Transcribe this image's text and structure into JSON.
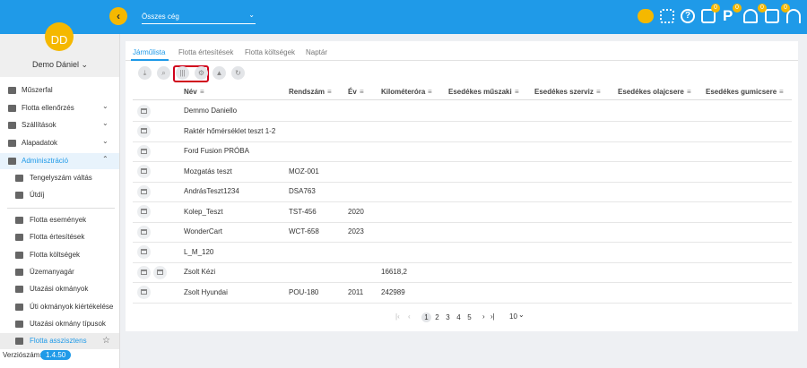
{
  "header": {
    "company_select": "Összes cég",
    "badges": [
      "0",
      "0",
      "0",
      "0"
    ]
  },
  "sidebar": {
    "avatar_initials": "DD",
    "user_name": "Demo Dániel",
    "menu": [
      "Műszerfal",
      "Flotta ellenőrzés",
      "Szállítások",
      "Alapadatok"
    ],
    "active_section": "Adminisztráció",
    "sub_items": [
      "Tengelyszám váltás",
      "Útdíj"
    ],
    "admin_items": [
      "Flotta események",
      "Flotta értesítések",
      "Flotta költségek",
      "Üzemanyagár",
      "Utazási okmányok",
      "Úti okmányok kiértékelése",
      "Utazási okmány típusok"
    ],
    "current": "Flotta asszisztens",
    "version_label": "Verziószám:",
    "version": "1.4.50"
  },
  "tabs": [
    "Járműlista",
    "Flotta értesítések",
    "Flotta költségek",
    "Naptár"
  ],
  "table": {
    "columns": [
      "Név",
      "Rendszám",
      "Év",
      "Kilométeróra",
      "Esedékes műszaki",
      "Esedékes szerviz",
      "Esedékes olajcsere",
      "Esedékes gumicsere"
    ],
    "rows": [
      {
        "name": "Demmo Daniello"
      },
      {
        "name": "Raktér hőmérséklet teszt 1-2"
      },
      {
        "name": "Ford Fusion PRÓBA"
      },
      {
        "name": "Mozgatás teszt",
        "plate": "MOZ-001"
      },
      {
        "name": "AndrásTeszt1234",
        "plate": "DSA763"
      },
      {
        "name": "Kolep_Teszt",
        "plate": "TST-456",
        "year": "2020"
      },
      {
        "name": "WonderCart",
        "plate": "WCT-658",
        "year": "2023"
      },
      {
        "name": "L_M_120"
      },
      {
        "name": "Zsolt Kézi",
        "km": "16618,2"
      },
      {
        "name": "Zsolt Hyundai",
        "plate": "POU-180",
        "year": "2011",
        "km": "242989"
      }
    ]
  },
  "pagination": {
    "pages": [
      1,
      2,
      3,
      4,
      5
    ],
    "page_size": 10
  }
}
